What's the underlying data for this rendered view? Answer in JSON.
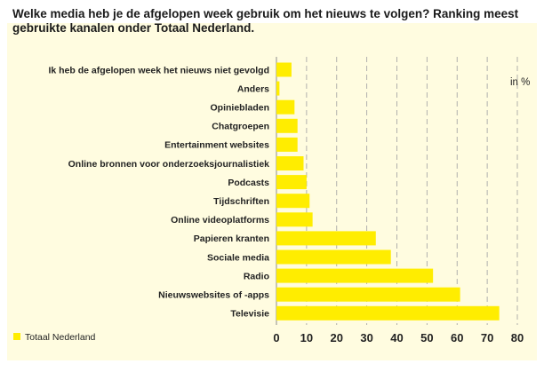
{
  "chart_data": {
    "type": "bar",
    "orientation": "horizontal",
    "title": "Welke media heb je de afgelopen week gebruik om het nieuws te volgen? Ranking meest gebruikte kanalen onder Totaal Nederland.",
    "unit_label": "in %",
    "categories": [
      "Ik heb de afgelopen week het nieuws niet gevolgd",
      "Anders",
      "Opiniebladen",
      "Chatgroepen",
      "Entertainment websites",
      "Online bronnen voor onderzoeksjournalistiek",
      "Podcasts",
      "Tijdschriften",
      "Online videoplatforms",
      "Papieren kranten",
      "Sociale media",
      "Radio",
      "Nieuwswebsites of -apps",
      "Televisie"
    ],
    "series": [
      {
        "name": "Totaal Nederland",
        "color": "#ffed00",
        "values": [
          5,
          1,
          6,
          7,
          7,
          9,
          10,
          11,
          12,
          33,
          38,
          52,
          61,
          74
        ]
      }
    ],
    "xticks": [
      0,
      10,
      20,
      30,
      40,
      50,
      60,
      70,
      80
    ],
    "xlim": [
      0,
      80
    ],
    "grid": "vertical dashed",
    "legend": "bottom-left"
  }
}
